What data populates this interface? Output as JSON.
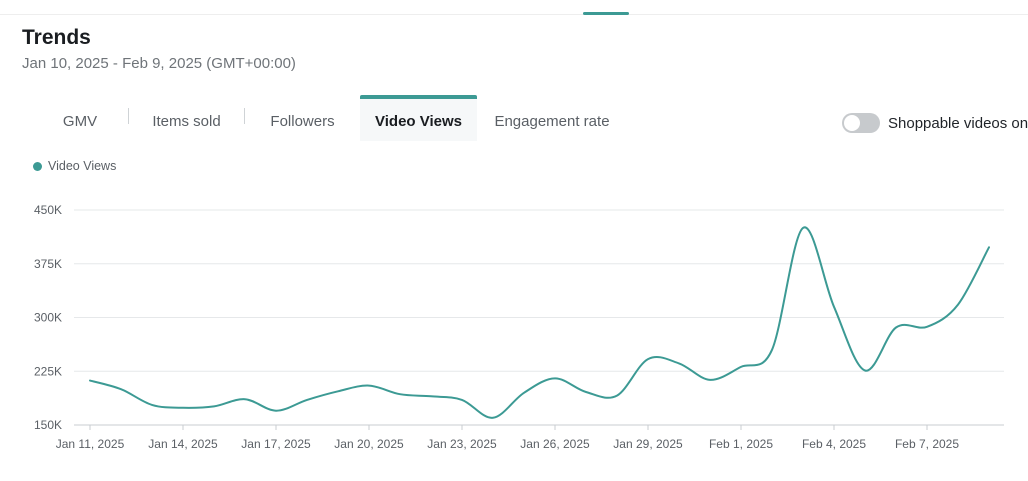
{
  "header": {
    "title": "Trends",
    "date_range": "Jan 10, 2025 - Feb 9, 2025 (GMT+00:00)"
  },
  "tabs": [
    {
      "label": "GMV",
      "active": false
    },
    {
      "label": "Items sold",
      "active": false
    },
    {
      "label": "Followers",
      "active": false
    },
    {
      "label": "Video Views",
      "active": true
    },
    {
      "label": "Engagement rate",
      "active": false
    }
  ],
  "toggle": {
    "label": "Shoppable videos on",
    "on": false
  },
  "colors": {
    "accent": "#3c9a94",
    "grid": "#e6e8ea"
  },
  "chart_data": {
    "type": "line",
    "legend": {
      "placement": "top-left"
    },
    "grid": true,
    "ylim": [
      150000,
      450000
    ],
    "y_ticks": [
      {
        "value": 150000,
        "label": "150K"
      },
      {
        "value": 225000,
        "label": "225K"
      },
      {
        "value": 300000,
        "label": "300K"
      },
      {
        "value": 375000,
        "label": "375K"
      },
      {
        "value": 450000,
        "label": "450K"
      }
    ],
    "x_ticks": [
      "Jan 11, 2025",
      "Jan 14, 2025",
      "Jan 17, 2025",
      "Jan 20, 2025",
      "Jan 23, 2025",
      "Jan 26, 2025",
      "Jan 29, 2025",
      "Feb 1, 2025",
      "Feb 4, 2025",
      "Feb 7, 2025"
    ],
    "series": [
      {
        "name": "Video Views",
        "color": "#3c9a94",
        "x": [
          "2025-01-11",
          "2025-01-12",
          "2025-01-13",
          "2025-01-14",
          "2025-01-15",
          "2025-01-16",
          "2025-01-17",
          "2025-01-18",
          "2025-01-19",
          "2025-01-20",
          "2025-01-21",
          "2025-01-22",
          "2025-01-23",
          "2025-01-24",
          "2025-01-25",
          "2025-01-26",
          "2025-01-27",
          "2025-01-28",
          "2025-01-29",
          "2025-01-30",
          "2025-01-31",
          "2025-02-01",
          "2025-02-02",
          "2025-02-03",
          "2025-02-04",
          "2025-02-05",
          "2025-02-06",
          "2025-02-07",
          "2025-02-08",
          "2025-02-09"
        ],
        "values": [
          212000,
          200000,
          178000,
          174000,
          176000,
          186000,
          170000,
          185000,
          197000,
          205000,
          193000,
          190000,
          185000,
          160000,
          195000,
          215000,
          196000,
          191000,
          242000,
          236000,
          213000,
          231000,
          255000,
          425000,
          315000,
          226000,
          286000,
          287000,
          318000,
          398000
        ]
      }
    ]
  }
}
